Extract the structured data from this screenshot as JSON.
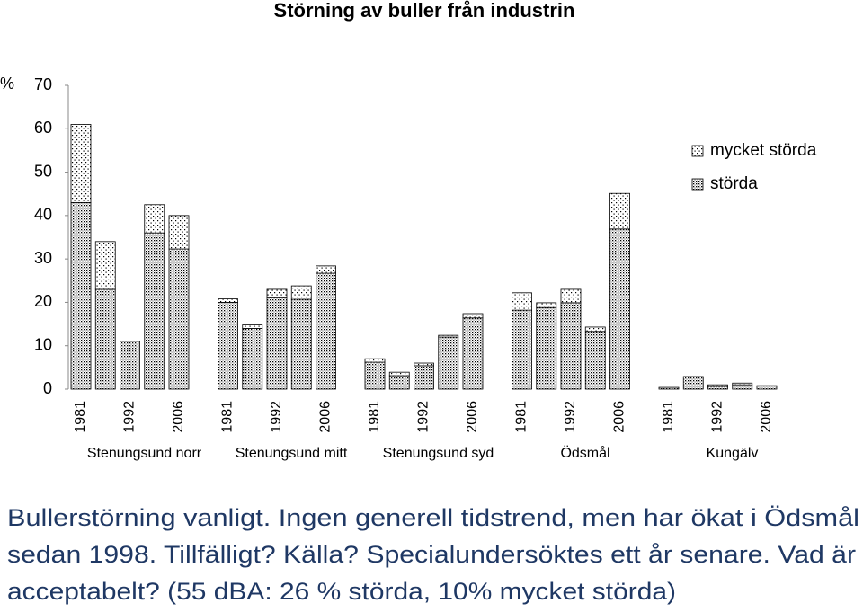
{
  "chart_data": {
    "type": "stacked-bar",
    "title": "Störning av buller från industrin",
    "y_label": "%",
    "categories": [
      "1981",
      null,
      "1992",
      null,
      "2006",
      "1981",
      null,
      "1992",
      null,
      "2006",
      "1981",
      null,
      "1992",
      null,
      "2006",
      "1981",
      null,
      "1992",
      null,
      "2006",
      "1981",
      null,
      "1992",
      null,
      "2006"
    ],
    "groups": [
      "Stenungsund norr",
      "Stenungsund mitt",
      "Stenungsund syd",
      "Ödsmål",
      "Kungälv"
    ],
    "series": [
      {
        "name": "störda",
        "color": "#000000",
        "pattern": "dense-dots",
        "values": [
          43,
          23,
          11,
          36,
          32.3,
          20,
          14,
          21,
          20.7,
          26.7,
          6.2,
          3.1,
          5.4,
          12,
          16.4,
          18.2,
          18.8,
          19.9,
          13.3,
          36.9,
          0.4,
          2.9,
          0.6,
          1,
          0.8
        ]
      },
      {
        "name": "mycket störda",
        "color": "#000000",
        "pattern": "sparse-dots",
        "values": [
          18,
          11,
          0,
          6.5,
          7.7,
          0.8,
          0.8,
          2,
          3.1,
          1.7,
          0.8,
          0.8,
          0.6,
          0.4,
          1,
          4,
          1.1,
          3.1,
          1,
          8.2,
          0,
          0,
          0.4,
          0.4,
          0
        ]
      }
    ],
    "ylim": [
      0,
      70
    ],
    "yticks": [
      0,
      10,
      20,
      30,
      40,
      50,
      60,
      70
    ],
    "grid": false,
    "legend": "top-right"
  },
  "note": {
    "color": "#1f3864",
    "lines": [
      "Bullerstörning vanligt. Ingen generell tidstrend, men har ökat i Ödsmål",
      "sedan 1998. Tillfälligt? Källa? Specialundersöktes ett år senare. Vad är",
      "acceptabelt? (55 dBA: 26 % störda, 10% mycket störda)"
    ]
  }
}
